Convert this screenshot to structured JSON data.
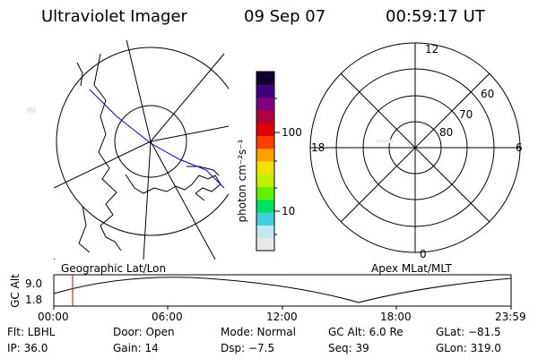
{
  "header": {
    "title": "Ultraviolet Imager",
    "date": "09 Sep 07",
    "time": "00:59:17 UT"
  },
  "colorbar": {
    "unit_label": "photon cm⁻²s⁻¹",
    "ticks": [
      "100",
      "10"
    ],
    "colors": [
      "#e8e8e8",
      "#bfe9ef",
      "#40d0e0",
      "#00e060",
      "#60f000",
      "#c0f000",
      "#f0e000",
      "#ffa000",
      "#ff4000",
      "#e00000",
      "#b00040",
      "#800080",
      "#400080",
      "#100030"
    ]
  },
  "geo_map": {
    "label": "Geographic Lat/Lon",
    "outline_color": "#000000",
    "track_color": "#0000cc"
  },
  "polar_plot": {
    "label": "Apex MLat/MLT",
    "mlt_labels": {
      "top": "12",
      "left": "18",
      "right": "6",
      "bottom": "0"
    },
    "lat_labels": [
      "60",
      "70",
      "80"
    ]
  },
  "altitude_plot": {
    "ylabel": "GC Alt",
    "yticks": [
      "9.0",
      "1.8"
    ],
    "xticks": [
      "00:00",
      "06:00",
      "12:00",
      "18:00",
      "23:59"
    ],
    "marker_time": "00:59",
    "marker_color": "#cc0000"
  },
  "info": {
    "filter": "Flt: LBHL",
    "door": "Door: Open",
    "mode": "Mode: Normal",
    "gc_alt": "GC Alt: 6.0 Re",
    "glat": "GLat: −81.5",
    "ip": "IP: 36.0",
    "gain": "Gain: 14",
    "dsp": "Dsp:    −7.5",
    "seq": "Seq: 39",
    "glon": "GLon: 319.0"
  }
}
